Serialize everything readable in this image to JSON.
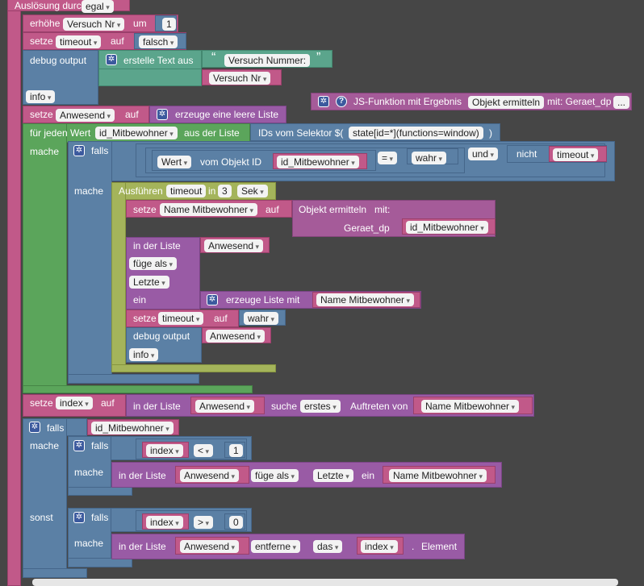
{
  "trigger": {
    "label": "Auslösung durch",
    "mode": "egal"
  },
  "increment": {
    "label": "erhöhe",
    "var": "Versuch Nr",
    "um": "um",
    "value": "1"
  },
  "set1": {
    "label": "setze",
    "var": "timeout",
    "auf": "auf",
    "value": "falsch"
  },
  "debug1": {
    "label": "debug output",
    "create_text": "erstelle Text aus",
    "text": "Versuch Nummer:",
    "var": "Versuch Nr",
    "level": "info",
    "quote_open": "“",
    "quote_close": "”"
  },
  "js_func": {
    "label": "JS-Funktion mit Ergebnis",
    "name": "Objekt ermitteln",
    "mit": "mit: Geraet_dp",
    "more": "..."
  },
  "set2": {
    "label": "setze",
    "var": "Anwesend",
    "auf": "auf",
    "create_list": "erzeuge eine leere Liste"
  },
  "foreach": {
    "label": "für jeden Wert",
    "var": "id_Mitbewohner",
    "from": "aus der Liste",
    "selector_label": "IDs vom Selektor $(",
    "selector": "state[id=*](functions=window)",
    "close": ")",
    "mache": "mache"
  },
  "if1": {
    "label": "falls",
    "wert": "Wert",
    "vom_objekt": "vom Objekt ID",
    "id": "id_Mitbewohner",
    "op": "=",
    "val": "wahr",
    "und": "und",
    "nicht": "nicht",
    "timeout": "timeout",
    "mache": "mache"
  },
  "exec": {
    "label": "Ausführen",
    "var": "timeout",
    "in": "in",
    "num": "3",
    "unit": "Sek"
  },
  "set3": {
    "label": "setze",
    "var": "Name Mitbewohner",
    "auf": "auf",
    "func": "Objekt ermitteln",
    "mit": "mit:",
    "param": "Geraet_dp",
    "arg": "id_Mitbewohner"
  },
  "list_insert": {
    "label": "in der Liste",
    "list": "Anwesend",
    "mode": "füge als",
    "pos": "Letzte",
    "ein": "ein",
    "create": "erzeuge Liste mit",
    "item": "Name Mitbewohner"
  },
  "set4": {
    "label": "setze",
    "var": "timeout",
    "auf": "auf",
    "value": "wahr"
  },
  "debug2": {
    "label": "debug output",
    "var": "Anwesend",
    "level": "info"
  },
  "set5": {
    "label": "setze",
    "var": "index",
    "auf": "auf",
    "in_list": "in der Liste",
    "list": "Anwesend",
    "suche": "suche",
    "which": "erstes",
    "auftreten": "Auftreten von",
    "item": "Name Mitbewohner"
  },
  "if2": {
    "label": "falls",
    "cond": "id_Mitbewohner",
    "mache": "mache",
    "sonst": "sonst"
  },
  "if3": {
    "label": "falls",
    "var": "index",
    "op": "<",
    "num": "1",
    "mache": "mache",
    "in_list": "in der Liste",
    "list": "Anwesend",
    "mode": "füge als",
    "pos": "Letzte",
    "ein": "ein",
    "item": "Name Mitbewohner"
  },
  "if4": {
    "label": "falls",
    "var": "index",
    "op": ">",
    "num": "0",
    "mache": "mache",
    "in_list": "in der Liste",
    "list": "Anwesend",
    "action": "entferne",
    "das": "das",
    "idx": "index",
    "elem": "Element",
    "dot": "."
  }
}
